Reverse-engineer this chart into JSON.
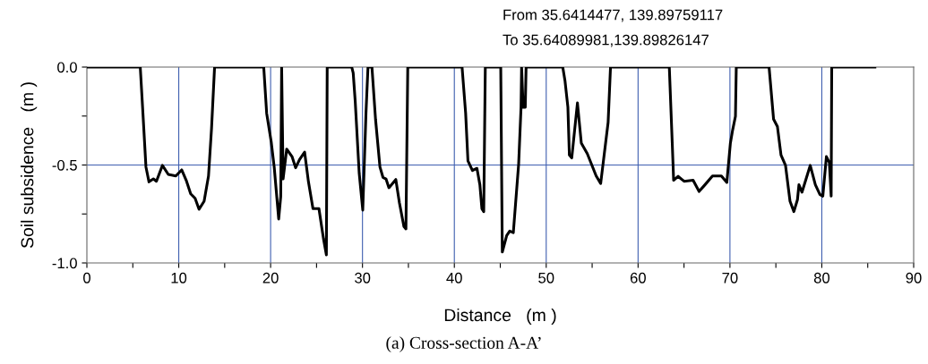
{
  "chart_data": {
    "type": "line",
    "xlabel": "Distance   (m )",
    "ylabel": "Soil subsidence   (m )",
    "annotations": [
      "From 35.6414477, 139.89759117",
      "To 35.64089981,139.89826147",
      "(a) Cross-section A-A’"
    ],
    "xlim": [
      0,
      90
    ],
    "xticks": [
      0,
      {
        "value": 5,
        "label": null
      },
      10,
      {
        "value": 15,
        "label": null
      },
      20,
      {
        "value": 25,
        "label": null
      },
      30,
      {
        "value": 35,
        "label": null
      },
      40,
      {
        "value": 45,
        "label": null
      },
      50,
      {
        "value": 55,
        "label": null
      },
      60,
      {
        "value": 65,
        "label": null
      },
      70,
      {
        "value": 75,
        "label": null
      },
      80,
      {
        "value": 85,
        "label": null
      },
      90
    ],
    "ylim": [
      -1.0,
      0.0
    ],
    "yticks": [
      {
        "value": -1.0,
        "label": "-1.0"
      },
      {
        "value": -0.75,
        "label": null
      },
      {
        "value": -0.5,
        "label": "-0.5"
      },
      {
        "value": -0.25,
        "label": null
      },
      {
        "value": 0.0,
        "label": "0.0"
      }
    ],
    "grid": true,
    "marker": "none",
    "line_style": "solid",
    "series": [
      {
        "color": "#000000",
        "x": [
          0,
          5.81,
          6.1,
          6.43,
          6.76,
          7.24,
          7.57,
          8.22,
          8.86,
          9.68,
          10.32,
          10.81,
          11.3,
          11.78,
          12.21,
          12.76,
          13.24,
          13.57,
          13.9,
          19.25,
          19.57,
          20.06,
          20.39,
          20.88,
          21.1,
          21.2,
          21.36,
          21.75,
          22.33,
          22.72,
          23.15,
          23.7,
          24.12,
          24.61,
          25.26,
          25.75,
          26.07,
          26.16,
          28.83,
          28.99,
          29.21,
          29.64,
          30.03,
          30.38,
          30.6,
          31.03,
          31.42,
          31.9,
          32.23,
          32.56,
          32.88,
          33.63,
          34.02,
          34.51,
          34.73,
          34.93,
          40.84,
          41.23,
          41.48,
          41.97,
          42.46,
          42.78,
          43.0,
          43.2,
          43.37,
          45.05,
          45.22,
          45.7,
          46.03,
          46.42,
          47.0,
          47.26,
          47.32,
          47.49,
          47.72,
          47.81,
          51.8,
          52.04,
          52.36,
          52.52,
          52.78,
          53.4,
          53.82,
          54.47,
          55.44,
          55.93,
          56.74,
          57.0,
          63.4,
          63.72,
          63.87,
          64.36,
          65.01,
          65.99,
          66.64,
          67.28,
          68.1,
          69.07,
          69.66,
          70.05,
          70.3,
          70.6,
          70.69,
          74.26,
          74.75,
          75.17,
          75.56,
          76.05,
          76.54,
          76.96,
          77.35,
          77.51,
          77.84,
          78.74,
          79.3,
          79.79,
          80.11,
          80.5,
          80.82,
          81.02,
          81.08,
          85.78
        ],
        "values": [
          0,
          0,
          -0.236,
          -0.51,
          -0.586,
          -0.571,
          -0.583,
          -0.502,
          -0.548,
          -0.556,
          -0.525,
          -0.578,
          -0.647,
          -0.67,
          -0.726,
          -0.685,
          -0.556,
          -0.312,
          0,
          0,
          -0.236,
          -0.38,
          -0.51,
          -0.776,
          -0.662,
          0,
          -0.571,
          -0.419,
          -0.457,
          -0.514,
          -0.472,
          -0.434,
          -0.586,
          -0.723,
          -0.723,
          -0.875,
          -0.959,
          0,
          0,
          -0.03,
          -0.175,
          -0.54,
          -0.73,
          -0.236,
          0,
          0,
          -0.266,
          -0.51,
          -0.563,
          -0.571,
          -0.616,
          -0.574,
          -0.693,
          -0.814,
          -0.826,
          0,
          0,
          -0.236,
          -0.479,
          -0.528,
          -0.517,
          -0.601,
          -0.723,
          -0.738,
          0,
          0,
          -0.944,
          -0.86,
          -0.837,
          -0.845,
          -0.495,
          -0.205,
          0,
          -0.205,
          -0.205,
          0,
          0,
          -0.068,
          -0.205,
          -0.449,
          -0.464,
          -0.183,
          -0.388,
          -0.442,
          -0.556,
          -0.594,
          -0.282,
          0,
          0,
          -0.388,
          -0.578,
          -0.558,
          -0.583,
          -0.578,
          -0.635,
          -0.601,
          -0.556,
          -0.556,
          -0.589,
          -0.388,
          -0.32,
          -0.251,
          0,
          0,
          -0.266,
          -0.304,
          -0.449,
          -0.502,
          -0.685,
          -0.738,
          -0.677,
          -0.601,
          -0.639,
          -0.502,
          -0.601,
          -0.65,
          -0.659,
          -0.457,
          -0.487,
          -0.659,
          0,
          0
        ]
      }
    ]
  }
}
